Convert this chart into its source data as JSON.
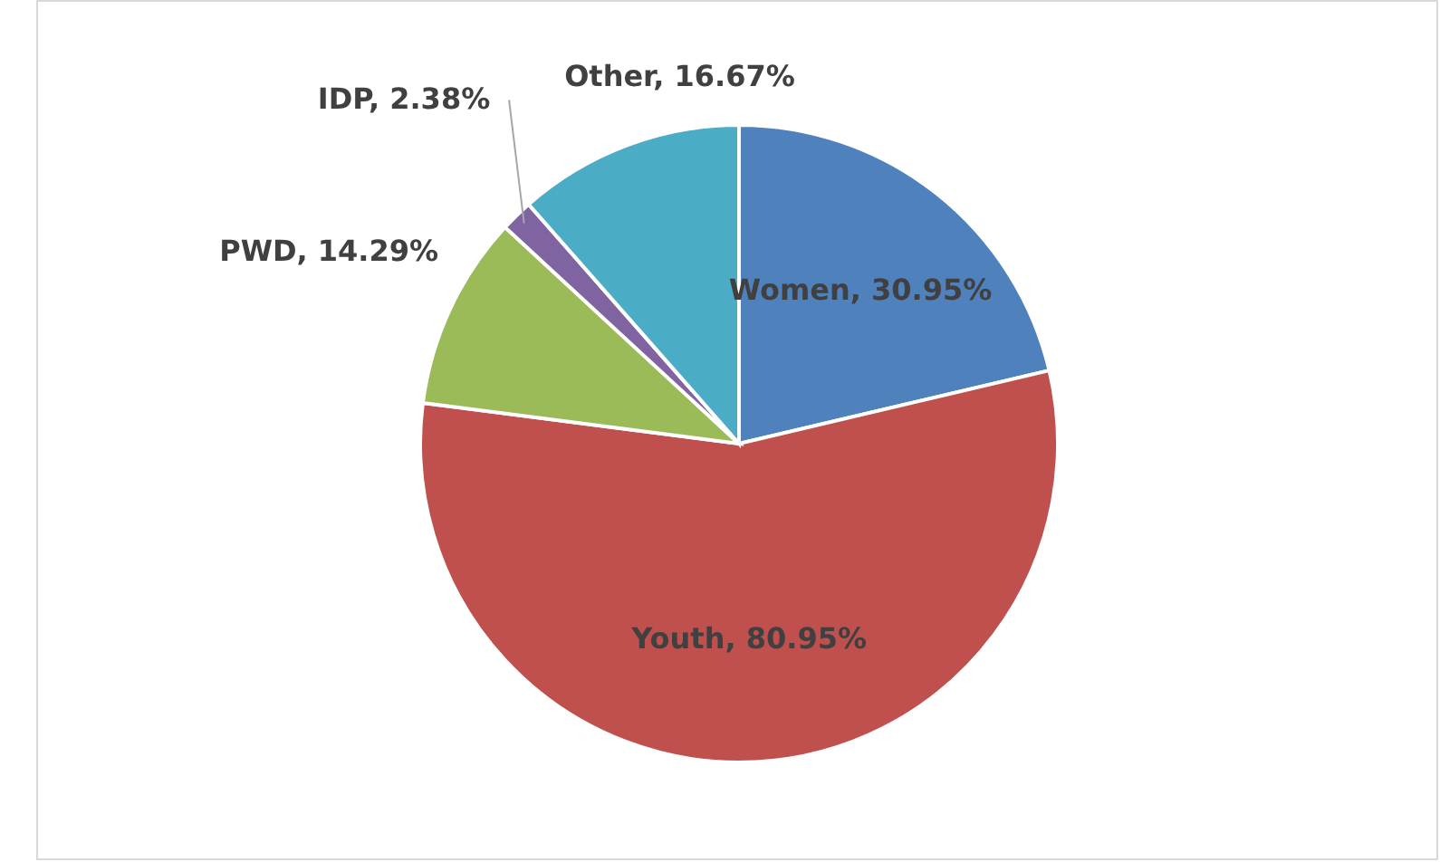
{
  "chart_data": {
    "type": "pie",
    "categories": [
      "Women",
      "Youth",
      "PWD",
      "IDP",
      "Other"
    ],
    "values": [
      30.95,
      80.95,
      14.29,
      2.38,
      16.67
    ],
    "value_labels": [
      "30.95%",
      "80.95%",
      "14.29%",
      "2.38%",
      "16.67%"
    ],
    "colors": [
      "#4f81bd",
      "#c0504d",
      "#9bbb59",
      "#8064a2",
      "#4bacc6"
    ]
  }
}
